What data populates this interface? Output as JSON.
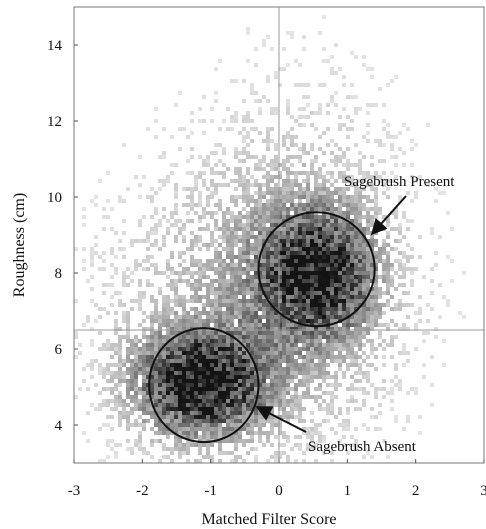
{
  "chart_data": {
    "type": "heatmap",
    "subtype": "2d-density-scatter",
    "title": "",
    "xlabel": "Matched Filter Score",
    "ylabel": "Roughness (cm)",
    "xlim": [
      -3,
      3
    ],
    "ylim": [
      3,
      15
    ],
    "xticks": [
      "-3",
      "-2",
      "-1",
      "0",
      "1",
      "2",
      "3"
    ],
    "yticks": [
      "4",
      "6",
      "8",
      "10",
      "12",
      "14"
    ],
    "grid": false,
    "point_color": "#000000",
    "density_clusters": [
      {
        "name": "Sagebrush Absent",
        "center": [
          -1.15,
          5.1
        ],
        "weight": 0.45
      },
      {
        "name": "Sagebrush Present",
        "center": [
          0.55,
          8.0
        ],
        "weight": 0.35
      }
    ],
    "reference_lines": [
      {
        "orientation": "vertical",
        "value": 0
      },
      {
        "orientation": "horizontal",
        "value": 6.5
      }
    ],
    "annotations": [
      {
        "text": "Sagebrush Present",
        "ellipse_center": [
          0.55,
          8.1
        ],
        "ellipse_radius": [
          0.85,
          1.5
        ]
      },
      {
        "text": "Sagebrush Absent",
        "ellipse_center": [
          -1.1,
          5.05
        ],
        "ellipse_radius": [
          0.8,
          1.5
        ]
      }
    ]
  }
}
